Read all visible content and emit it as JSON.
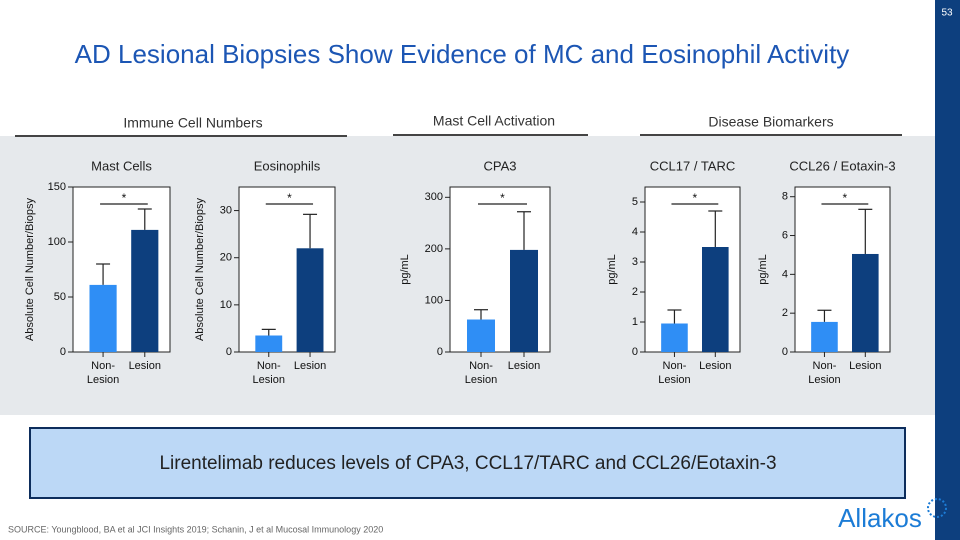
{
  "slide": {
    "title": "AD Lesional Biopsies Show Evidence of MC and Eosinophil Activity",
    "page_number": "53",
    "sections": [
      "Immune Cell Numbers",
      "Mast Cell Activation",
      "Disease Biomarkers"
    ],
    "callout": "Lirentelimab reduces levels of CPA3, CCL17/TARC and CCL26/Eotaxin-3",
    "source": "SOURCE:  Youngblood, BA et al JCI Insights 2019; Schanin, J et al Mucosal Immunology 2020",
    "logo": "Allakos"
  },
  "chart_data": [
    {
      "type": "bar",
      "title": "Mast Cells",
      "ylabel": "Absolute Cell Number/Biopsy",
      "categories": [
        "Non-\nLesion",
        "Lesion"
      ],
      "values": [
        61,
        111
      ],
      "errors": [
        19,
        19
      ],
      "colors": [
        "#2f8ef5",
        "#0d3f7e"
      ],
      "ylim": [
        0,
        150
      ],
      "yticks": [
        0,
        50,
        100,
        150
      ],
      "annotation": "*"
    },
    {
      "type": "bar",
      "title": "Eosinophils",
      "ylabel": "Absolute Cell Number/Biopsy",
      "categories": [
        "Non-\nLesion",
        "Lesion"
      ],
      "values": [
        3.5,
        22
      ],
      "errors": [
        1.3,
        7.2
      ],
      "colors": [
        "#2f8ef5",
        "#0d3f7e"
      ],
      "ylim": [
        0,
        35
      ],
      "yticks": [
        0,
        10,
        20,
        30
      ],
      "annotation": "*"
    },
    {
      "type": "bar",
      "title": "CPA3",
      "ylabel": "pg/mL",
      "categories": [
        "Non-\nLesion",
        "Lesion"
      ],
      "values": [
        63,
        198
      ],
      "errors": [
        19,
        74
      ],
      "colors": [
        "#2f8ef5",
        "#0d3f7e"
      ],
      "ylim": [
        0,
        320
      ],
      "yticks": [
        0,
        100,
        200,
        300
      ],
      "annotation": "*"
    },
    {
      "type": "bar",
      "title": "CCL17 / TARC",
      "ylabel": "pg/mL",
      "categories": [
        "Non-\nLesion",
        "Lesion"
      ],
      "values": [
        0.95,
        3.5
      ],
      "errors": [
        0.45,
        1.2
      ],
      "colors": [
        "#2f8ef5",
        "#0d3f7e"
      ],
      "ylim": [
        0,
        5.5
      ],
      "yticks": [
        0,
        1,
        2,
        3,
        4,
        5
      ],
      "annotation": "*"
    },
    {
      "type": "bar",
      "title": "CCL26 / Eotaxin-3",
      "ylabel": "pg/mL",
      "categories": [
        "Non-\nLesion",
        "Lesion"
      ],
      "values": [
        1.55,
        5.05
      ],
      "errors": [
        0.6,
        2.3
      ],
      "colors": [
        "#2f8ef5",
        "#0d3f7e"
      ],
      "ylim": [
        0,
        8.5
      ],
      "yticks": [
        0,
        2,
        4,
        6,
        8
      ],
      "annotation": "*"
    }
  ]
}
